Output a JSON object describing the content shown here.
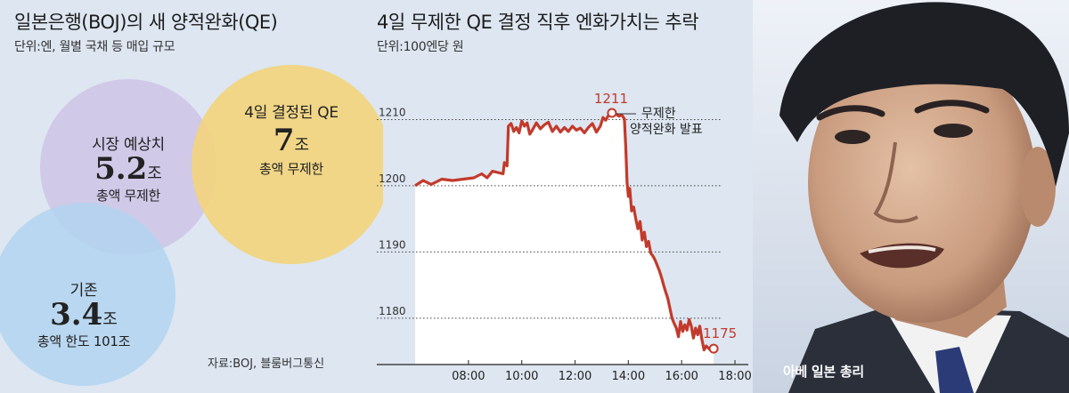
{
  "left_panel": {
    "title": "일본은행(BOJ)의 새 양적완화(QE)",
    "subtitle": "단위:엔, 월별 국채 등 매입 규모",
    "bubbles": [
      {
        "label": "시장 예상치",
        "value": "5.2",
        "unit": "조",
        "note": "총액 무제한",
        "color": "#cfc3e6"
      },
      {
        "label": "4일 결정된 QE",
        "value": "7",
        "unit": "조",
        "note": "총액 무제한",
        "color": "#f3d47b"
      },
      {
        "label": "기존",
        "value": "3.4",
        "unit": "조",
        "note": "총액 한도 101조",
        "color": "#b3d3f0"
      }
    ],
    "source": "자료:BOJ, 블룸버그통신"
  },
  "chart_data": {
    "type": "line",
    "title": "4일 무제한 QE 결정 직후 엔화가치는 추락",
    "subtitle": "단위:100엔당 원",
    "x_ticks": [
      "08:00",
      "10:00",
      "12:00",
      "14:00",
      "16:00",
      "18:00"
    ],
    "y_ticks": [
      1180,
      1190,
      1200,
      1210
    ],
    "ylim": [
      1173,
      1220
    ],
    "xlim_hours": [
      6.0,
      18.5
    ],
    "series": [
      {
        "color": "#c23a2b",
        "points": [
          [
            6.0,
            1200.0
          ],
          [
            6.3,
            1200.8
          ],
          [
            6.6,
            1200.2
          ],
          [
            7.0,
            1201.0
          ],
          [
            7.4,
            1200.8
          ],
          [
            7.8,
            1201.0
          ],
          [
            8.2,
            1201.2
          ],
          [
            8.5,
            1201.8
          ],
          [
            8.7,
            1201.2
          ],
          [
            8.9,
            1202.2
          ],
          [
            9.1,
            1202.0
          ],
          [
            9.3,
            1201.8
          ],
          [
            9.35,
            1203.5
          ],
          [
            9.45,
            1203.0
          ],
          [
            9.5,
            1209.0
          ],
          [
            9.6,
            1209.4
          ],
          [
            9.7,
            1208.2
          ],
          [
            9.8,
            1208.8
          ],
          [
            9.9,
            1208.0
          ],
          [
            10.0,
            1209.8
          ],
          [
            10.1,
            1209.0
          ],
          [
            10.2,
            1209.5
          ],
          [
            10.3,
            1207.8
          ],
          [
            10.4,
            1208.4
          ],
          [
            10.55,
            1209.5
          ],
          [
            10.7,
            1208.6
          ],
          [
            10.85,
            1209.2
          ],
          [
            11.0,
            1209.6
          ],
          [
            11.15,
            1208.2
          ],
          [
            11.3,
            1209.0
          ],
          [
            11.45,
            1208.1
          ],
          [
            11.6,
            1208.8
          ],
          [
            11.75,
            1208.2
          ],
          [
            11.9,
            1209.0
          ],
          [
            12.05,
            1208.4
          ],
          [
            12.2,
            1208.7
          ],
          [
            12.35,
            1208.0
          ],
          [
            12.5,
            1208.8
          ],
          [
            12.65,
            1209.4
          ],
          [
            12.8,
            1208.1
          ],
          [
            12.95,
            1209.0
          ],
          [
            13.05,
            1210.3
          ],
          [
            13.15,
            1209.9
          ],
          [
            13.25,
            1210.6
          ],
          [
            13.35,
            1211.0
          ],
          [
            13.45,
            1210.6
          ],
          [
            13.55,
            1210.8
          ],
          [
            13.65,
            1210.5
          ],
          [
            13.75,
            1210.7
          ],
          [
            13.85,
            1210.1
          ],
          [
            13.9,
            1206.0
          ],
          [
            13.95,
            1200.5
          ],
          [
            14.0,
            1198.4
          ],
          [
            14.05,
            1199.6
          ],
          [
            14.12,
            1196.2
          ],
          [
            14.2,
            1196.8
          ],
          [
            14.28,
            1195.0
          ],
          [
            14.36,
            1193.5
          ],
          [
            14.44,
            1194.6
          ],
          [
            14.52,
            1191.8
          ],
          [
            14.6,
            1193.0
          ],
          [
            14.68,
            1190.8
          ],
          [
            14.76,
            1191.6
          ],
          [
            14.84,
            1189.8
          ],
          [
            14.92,
            1189.4
          ],
          [
            15.0,
            1188.8
          ],
          [
            15.08,
            1188.0
          ],
          [
            15.16,
            1187.2
          ],
          [
            15.24,
            1186.2
          ],
          [
            15.32,
            1185.0
          ],
          [
            15.4,
            1184.0
          ],
          [
            15.48,
            1183.0
          ],
          [
            15.56,
            1181.5
          ],
          [
            15.64,
            1180.0
          ],
          [
            15.72,
            1179.2
          ],
          [
            15.8,
            1178.5
          ],
          [
            15.88,
            1177.2
          ],
          [
            15.96,
            1179.5
          ],
          [
            16.04,
            1178.0
          ],
          [
            16.12,
            1179.0
          ],
          [
            16.2,
            1178.2
          ],
          [
            16.28,
            1179.8
          ],
          [
            16.36,
            1178.8
          ],
          [
            16.44,
            1177.0
          ],
          [
            16.52,
            1178.5
          ],
          [
            16.6,
            1177.5
          ],
          [
            16.68,
            1178.8
          ],
          [
            16.76,
            1176.8
          ],
          [
            16.84,
            1175.2
          ],
          [
            16.92,
            1175.8
          ],
          [
            17.0,
            1175.5
          ],
          [
            17.08,
            1175.2
          ],
          [
            17.2,
            1175.4
          ]
        ]
      }
    ],
    "annotations": {
      "peak_label": "1211",
      "end_label": "1175",
      "event_label_line1": "무제한",
      "event_label_line2": "양적완화 발표"
    }
  },
  "photo": {
    "caption": "아베 일본 총리"
  }
}
